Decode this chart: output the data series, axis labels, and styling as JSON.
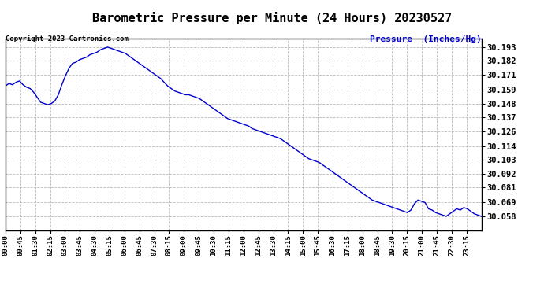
{
  "title": "Barometric Pressure per Minute (24 Hours) 20230527",
  "copyright_text": "Copyright 2023 Cartronics.com",
  "pressure_label": "Pressure  (Inches/Hg)",
  "ylabel_color": "#0000cc",
  "title_color": "#000000",
  "line_color": "#0000cc",
  "background_color": "#ffffff",
  "grid_color": "#aaaaaa",
  "yticks": [
    30.058,
    30.069,
    30.081,
    30.092,
    30.103,
    30.114,
    30.126,
    30.137,
    30.148,
    30.159,
    30.171,
    30.182,
    30.193
  ],
  "ylim": [
    30.047,
    30.2
  ],
  "xtick_labels": [
    "00:00",
    "00:45",
    "01:30",
    "02:15",
    "03:00",
    "03:45",
    "04:30",
    "05:15",
    "06:00",
    "06:45",
    "07:30",
    "08:15",
    "09:00",
    "09:45",
    "10:30",
    "11:15",
    "12:00",
    "12:45",
    "13:30",
    "14:15",
    "15:00",
    "15:45",
    "16:30",
    "17:15",
    "18:00",
    "18:45",
    "19:30",
    "20:15",
    "21:00",
    "21:45",
    "22:30",
    "23:15"
  ],
  "pressure_data": [
    30.162,
    30.164,
    30.163,
    30.165,
    30.166,
    30.163,
    30.161,
    30.16,
    30.157,
    30.153,
    30.149,
    30.148,
    30.147,
    30.148,
    30.15,
    30.155,
    30.163,
    30.17,
    30.176,
    30.18,
    30.181,
    30.183,
    30.184,
    30.185,
    30.187,
    30.188,
    30.189,
    30.191,
    30.192,
    30.193,
    30.192,
    30.191,
    30.19,
    30.189,
    30.188,
    30.186,
    30.184,
    30.182,
    30.18,
    30.178,
    30.176,
    30.174,
    30.172,
    30.17,
    30.168,
    30.165,
    30.162,
    30.16,
    30.158,
    30.157,
    30.156,
    30.155,
    30.155,
    30.154,
    30.153,
    30.152,
    30.15,
    30.148,
    30.146,
    30.144,
    30.142,
    30.14,
    30.138,
    30.136,
    30.135,
    30.134,
    30.133,
    30.132,
    30.131,
    30.13,
    30.128,
    30.127,
    30.126,
    30.125,
    30.124,
    30.123,
    30.122,
    30.121,
    30.12,
    30.118,
    30.116,
    30.114,
    30.112,
    30.11,
    30.108,
    30.106,
    30.104,
    30.103,
    30.102,
    30.101,
    30.099,
    30.097,
    30.095,
    30.093,
    30.091,
    30.089,
    30.087,
    30.085,
    30.083,
    30.081,
    30.079,
    30.077,
    30.075,
    30.073,
    30.071,
    30.07,
    30.069,
    30.068,
    30.067,
    30.066,
    30.065,
    30.064,
    30.063,
    30.062,
    30.061,
    30.063,
    30.068,
    30.071,
    30.07,
    30.069,
    30.064,
    30.063,
    30.061,
    30.06,
    30.059,
    30.058,
    30.06,
    30.062,
    30.064,
    30.063,
    30.065,
    30.064,
    30.062,
    30.06,
    30.059,
    30.058
  ]
}
